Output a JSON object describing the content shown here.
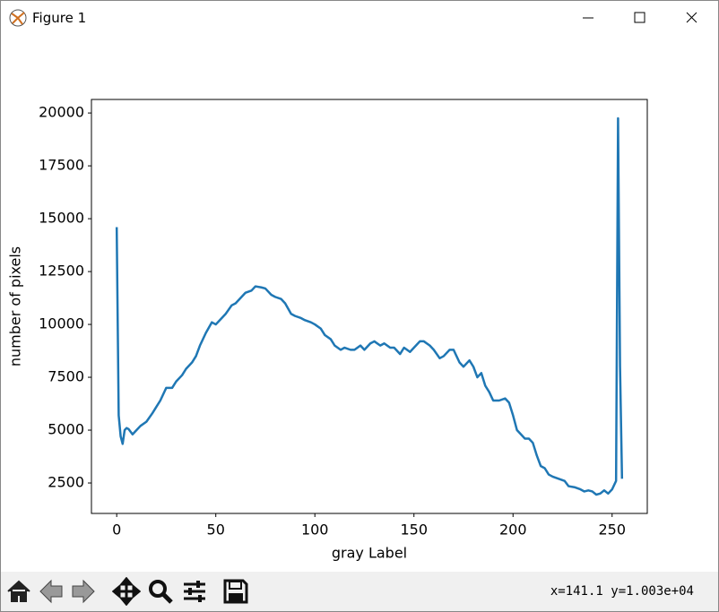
{
  "window": {
    "title": "Figure 1",
    "status_text": "x=141.1 y=1.003e+04"
  },
  "chart_data": {
    "type": "line",
    "xlabel": "gray Label",
    "ylabel": "number of pixels",
    "color": "#1f77b4",
    "x": [
      0,
      1,
      2,
      3,
      4,
      5,
      6,
      8,
      10,
      12,
      15,
      18,
      20,
      22,
      25,
      28,
      30,
      33,
      35,
      38,
      40,
      42,
      45,
      48,
      50,
      53,
      55,
      58,
      60,
      63,
      65,
      68,
      70,
      73,
      75,
      78,
      80,
      83,
      85,
      88,
      90,
      93,
      95,
      98,
      100,
      103,
      105,
      108,
      110,
      113,
      115,
      118,
      120,
      123,
      125,
      128,
      130,
      133,
      135,
      138,
      140,
      143,
      145,
      148,
      150,
      153,
      155,
      158,
      160,
      163,
      165,
      168,
      170,
      173,
      175,
      178,
      180,
      182,
      184,
      186,
      188,
      190,
      193,
      196,
      198,
      200,
      202,
      204,
      206,
      208,
      210,
      212,
      214,
      216,
      218,
      220,
      223,
      226,
      228,
      231,
      234,
      236,
      238,
      240,
      242,
      244,
      246,
      248,
      250,
      252,
      253,
      254,
      255
    ],
    "values": [
      14600,
      5700,
      4700,
      4350,
      5000,
      5100,
      5050,
      4800,
      5000,
      5200,
      5400,
      5800,
      6100,
      6400,
      7000,
      7000,
      7300,
      7600,
      7900,
      8200,
      8500,
      9000,
      9600,
      10100,
      10000,
      10300,
      10500,
      10900,
      11000,
      11300,
      11500,
      11600,
      11800,
      11750,
      11700,
      11400,
      11300,
      11200,
      11000,
      10500,
      10400,
      10300,
      10200,
      10100,
      10000,
      9800,
      9500,
      9300,
      9000,
      8800,
      8900,
      8800,
      8800,
      9000,
      8800,
      9100,
      9200,
      9000,
      9100,
      8900,
      8900,
      8600,
      8900,
      8700,
      8900,
      9200,
      9200,
      9000,
      8800,
      8400,
      8500,
      8800,
      8800,
      8200,
      8000,
      8300,
      8000,
      7500,
      7700,
      7100,
      6800,
      6400,
      6400,
      6500,
      6300,
      5700,
      5000,
      4800,
      4600,
      4600,
      4400,
      3800,
      3300,
      3200,
      2900,
      2800,
      2700,
      2600,
      2350,
      2300,
      2200,
      2100,
      2150,
      2100,
      1950,
      2000,
      2150,
      2000,
      2200,
      2600,
      19750,
      8000,
      2700
    ],
    "xlim": [
      -12.75,
      267.75
    ],
    "ylim": [
      1060,
      20640
    ],
    "xticks": [
      0,
      50,
      100,
      150,
      200,
      250
    ],
    "yticks": [
      2500,
      5000,
      7500,
      10000,
      12500,
      15000,
      17500,
      20000
    ]
  }
}
